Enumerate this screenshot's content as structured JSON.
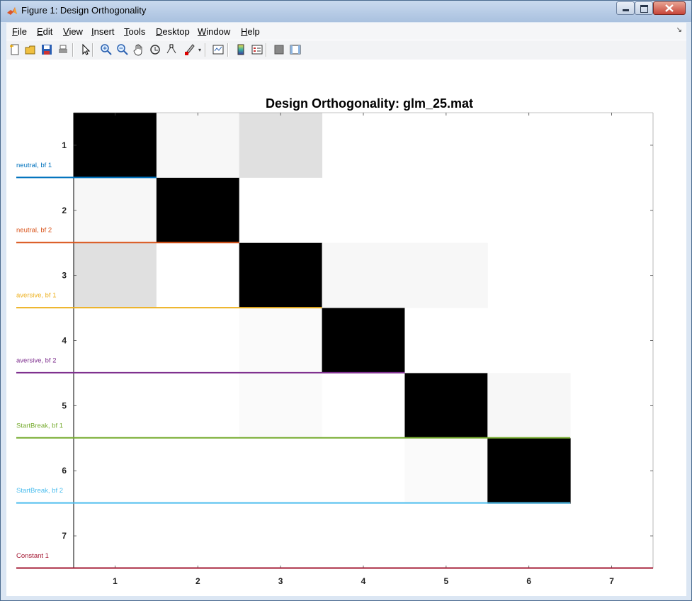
{
  "window": {
    "title": "Figure 1: Design Orthogonality"
  },
  "menu": [
    {
      "label": "File",
      "accel": "F",
      "rest": "ile"
    },
    {
      "label": "Edit",
      "accel": "E",
      "rest": "dit"
    },
    {
      "label": "View",
      "accel": "V",
      "rest": "iew"
    },
    {
      "label": "Insert",
      "accel": "I",
      "rest": "nsert"
    },
    {
      "label": "Tools",
      "accel": "T",
      "rest": "ools"
    },
    {
      "label": "Desktop",
      "accel": "D",
      "rest": "esktop"
    },
    {
      "label": "Window",
      "accel": "W",
      "rest": "indow"
    },
    {
      "label": "Help",
      "accel": "H",
      "rest": "elp"
    }
  ],
  "toolbar_icons": [
    "new-figure-icon",
    "open-file-icon",
    "save-icon",
    "print-icon",
    "pointer-icon",
    "zoom-in-icon",
    "zoom-out-icon",
    "pan-icon",
    "rotate-3d-icon",
    "data-cursor-icon",
    "brush-icon",
    "link-plot-icon",
    "insert-colorbar-icon",
    "insert-legend-icon",
    "hide-plot-tools-icon",
    "show-plot-tools-icon"
  ],
  "chart_data": {
    "type": "heatmap",
    "title": "Design Orthogonality: glm_25.mat",
    "x_ticks": [
      "1",
      "2",
      "3",
      "4",
      "5",
      "6",
      "7"
    ],
    "y_ticks": [
      "1",
      "2",
      "3",
      "4",
      "5",
      "6",
      "7"
    ],
    "colormap": "gray (1 = black, 0 = white)",
    "row_labels": [
      {
        "label": "neutral, bf 1",
        "color": "#0072bd"
      },
      {
        "label": "neutral, bf 2",
        "color": "#d95319"
      },
      {
        "label": "aversive, bf 1",
        "color": "#edb120"
      },
      {
        "label": "aversive, bf 2",
        "color": "#7e2f8e"
      },
      {
        "label": "StartBreak, bf 1",
        "color": "#77ac30"
      },
      {
        "label": "StartBreak, bf 2",
        "color": "#4dbeee"
      },
      {
        "label": "Constant 1",
        "color": "#a2142f"
      }
    ],
    "row_label_cols": [
      1,
      2,
      3,
      4,
      6,
      6,
      7
    ],
    "matrix": [
      [
        1,
        0.03,
        0.12,
        null,
        null,
        null,
        null
      ],
      [
        0.03,
        1,
        0,
        null,
        null,
        null,
        null
      ],
      [
        0.12,
        0,
        1,
        0.03,
        0.03,
        null,
        null
      ],
      [
        0,
        0,
        0.02,
        1,
        0,
        null,
        null
      ],
      [
        0,
        0,
        0.02,
        0,
        1,
        0.03,
        null
      ],
      [
        0,
        0,
        0,
        0,
        0.02,
        1,
        null
      ],
      [
        null,
        null,
        null,
        null,
        null,
        null,
        null
      ]
    ]
  }
}
